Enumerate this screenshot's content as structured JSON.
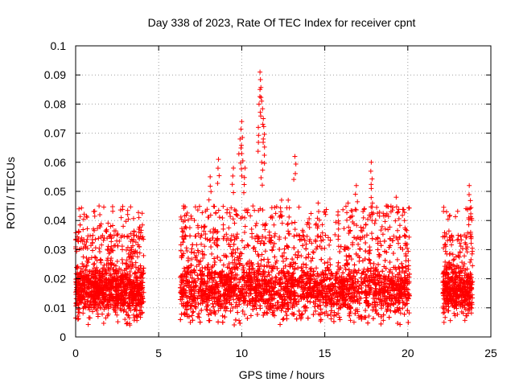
{
  "chart_data": {
    "type": "scatter",
    "title": "Day 338 of 2023, Rate Of TEC Index for receiver cpnt",
    "xlabel": "GPS time / hours",
    "ylabel": "ROTI / TECUs",
    "xlim": [
      0,
      25
    ],
    "ylim": [
      0,
      0.1
    ],
    "xticks": [
      "0",
      "5",
      "10",
      "15",
      "20",
      "25"
    ],
    "yticks": [
      "0",
      "0.01",
      "0.02",
      "0.03",
      "0.04",
      "0.05",
      "0.06",
      "0.07",
      "0.08",
      "0.09",
      "0.1"
    ],
    "grid": true,
    "marker": "+",
    "color": "#ff0000",
    "observation_windows_hours": [
      [
        0.0,
        4.1
      ],
      [
        6.3,
        20.1
      ],
      [
        22.1,
        23.9
      ]
    ],
    "typical_band": [
      0.007,
      0.035
    ],
    "peaks": [
      {
        "x": 0.2,
        "y": 0.044
      },
      {
        "x": 2.1,
        "y": 0.038
      },
      {
        "x": 3.8,
        "y": 0.037
      },
      {
        "x": 6.5,
        "y": 0.045
      },
      {
        "x": 8.1,
        "y": 0.055
      },
      {
        "x": 8.6,
        "y": 0.061
      },
      {
        "x": 9.5,
        "y": 0.058
      },
      {
        "x": 9.9,
        "y": 0.068
      },
      {
        "x": 10.0,
        "y": 0.074
      },
      {
        "x": 10.0,
        "y": 0.063
      },
      {
        "x": 10.2,
        "y": 0.058
      },
      {
        "x": 11.0,
        "y": 0.072
      },
      {
        "x": 11.1,
        "y": 0.091
      },
      {
        "x": 11.1,
        "y": 0.085
      },
      {
        "x": 11.2,
        "y": 0.081
      },
      {
        "x": 11.2,
        "y": 0.06
      },
      {
        "x": 11.3,
        "y": 0.075
      },
      {
        "x": 11.3,
        "y": 0.068
      },
      {
        "x": 12.4,
        "y": 0.047
      },
      {
        "x": 12.8,
        "y": 0.047
      },
      {
        "x": 13.2,
        "y": 0.062
      },
      {
        "x": 14.6,
        "y": 0.046
      },
      {
        "x": 15.8,
        "y": 0.043
      },
      {
        "x": 16.4,
        "y": 0.046
      },
      {
        "x": 16.9,
        "y": 0.052
      },
      {
        "x": 17.8,
        "y": 0.06
      },
      {
        "x": 17.8,
        "y": 0.051
      },
      {
        "x": 18.7,
        "y": 0.045
      },
      {
        "x": 19.3,
        "y": 0.048
      },
      {
        "x": 19.8,
        "y": 0.04
      },
      {
        "x": 23.7,
        "y": 0.052
      },
      {
        "x": 23.6,
        "y": 0.044
      }
    ]
  }
}
